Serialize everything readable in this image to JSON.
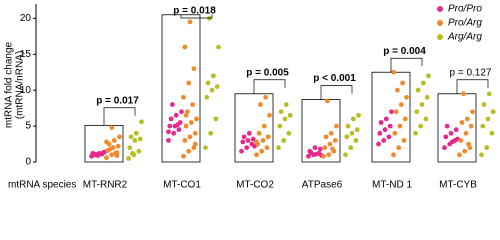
{
  "chart_data": {
    "type": "strip",
    "y_label": [
      "mtRNA fold change",
      "(mtRNA/nRNA)"
    ],
    "x_label": "mtRNA species",
    "categories": [
      "MT-RNR2",
      "MT-CO1",
      "MT-CO2",
      "ATPase6",
      "MT-ND 1",
      "MT-CYB"
    ],
    "box_tops": [
      5.1,
      20.5,
      9.5,
      8.7,
      12.5,
      9.5
    ],
    "annotations": [
      "p = 0.017",
      "p = 0.018",
      "p = 0.005",
      "p < 0.001",
      "p = 0.004",
      "p = 0.127"
    ],
    "annotation_bold": [
      true,
      true,
      true,
      true,
      true,
      false
    ],
    "ylim": [
      0,
      22
    ],
    "yticks": [
      0,
      5,
      10,
      15,
      20
    ],
    "legend_position": "top-right",
    "series": [
      {
        "name": "Pro/Pro",
        "color": "#e6298b",
        "values": [
          [
            0.8,
            1,
            1.1,
            1.2,
            0.9,
            1.3,
            1,
            1.2,
            1.4,
            1.1
          ],
          [
            3,
            4,
            4.5,
            5,
            5,
            5.5,
            6,
            6.5,
            7,
            8,
            5.2,
            4.2
          ],
          [
            1.5,
            2,
            2.5,
            2.8,
            3,
            3.2,
            3.5,
            4,
            2.2
          ],
          [
            0.8,
            1,
            1.2,
            1.5,
            2,
            1.8,
            1.3,
            1.1,
            0.9
          ],
          [
            2.5,
            3,
            3.5,
            4,
            4.5,
            5,
            5.5,
            6,
            7
          ],
          [
            2,
            2.5,
            3,
            3.5,
            4,
            4.5,
            5,
            2.8,
            3.2
          ]
        ]
      },
      {
        "name": "Pro/Arg",
        "color": "#f08a2c",
        "values": [
          [
            0.6,
            1,
            1.3,
            1.6,
            2,
            2.2,
            2.5,
            3,
            3.5,
            1.8,
            1.2,
            2.8,
            4.8,
            0.9
          ],
          [
            0.8,
            1.5,
            2,
            3,
            3.5,
            4,
            5,
            5.5,
            6,
            7,
            8,
            9,
            11,
            13,
            16,
            19.5,
            2.5,
            6.5
          ],
          [
            1,
            1.5,
            2,
            2.5,
            3,
            3.5,
            4,
            5,
            6.5,
            8,
            9,
            2.8
          ],
          [
            0.8,
            1,
            1.5,
            2,
            2.5,
            3,
            3.5,
            4,
            5,
            8.5,
            1.8
          ],
          [
            1,
            2,
            3,
            4,
            5,
            6,
            7,
            8,
            9,
            10,
            11,
            12.5
          ],
          [
            1,
            1.5,
            2,
            3,
            4,
            5,
            5.5,
            6,
            7,
            9.5,
            2.5
          ]
        ]
      },
      {
        "name": "Arg/Arg",
        "color": "#b7bd22",
        "values": [
          [
            0.5,
            1,
            1.5,
            2,
            3,
            3.2,
            3.5,
            4,
            5.6,
            1.2
          ],
          [
            2,
            4,
            6,
            9,
            10,
            10.5,
            11,
            12,
            16,
            20
          ],
          [
            2,
            3,
            4,
            5,
            6,
            6.5,
            7,
            8
          ],
          [
            1,
            2,
            3,
            3.5,
            4,
            4.5,
            5,
            6,
            6.5
          ],
          [
            4,
            5,
            6,
            7,
            8,
            9,
            10,
            11,
            12
          ],
          [
            1,
            2,
            4,
            5,
            6,
            7,
            8,
            9.5
          ]
        ]
      }
    ]
  }
}
